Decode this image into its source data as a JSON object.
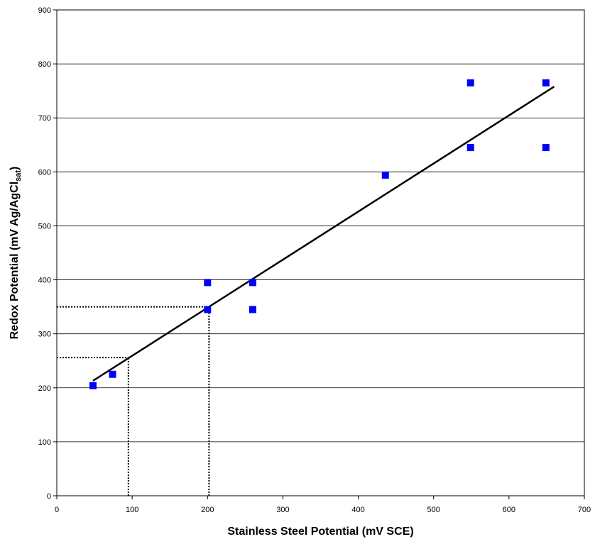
{
  "chart_data": {
    "type": "scatter",
    "title": "",
    "xlabel": "Stainless Steel Potential (mV SCE)",
    "ylabel": {
      "main": "Redox Potential (mV Ag/AgCl",
      "subscript": "sat",
      "close": ")"
    },
    "xlim": [
      0,
      700
    ],
    "ylim": [
      0,
      900
    ],
    "x_ticks": [
      0,
      100,
      200,
      300,
      400,
      500,
      600,
      700
    ],
    "y_ticks": [
      0,
      100,
      200,
      300,
      400,
      500,
      600,
      700,
      800,
      900
    ],
    "grid": "horizontal",
    "legend": "none",
    "series": [
      {
        "marker": "square",
        "color": "#0000ff",
        "points": [
          {
            "x": 48,
            "y": 204
          },
          {
            "x": 74,
            "y": 225
          },
          {
            "x": 200,
            "y": 345
          },
          {
            "x": 200,
            "y": 395
          },
          {
            "x": 260,
            "y": 345
          },
          {
            "x": 260,
            "y": 395
          },
          {
            "x": 436,
            "y": 594
          },
          {
            "x": 549,
            "y": 645
          },
          {
            "x": 549,
            "y": 765
          },
          {
            "x": 649,
            "y": 645
          },
          {
            "x": 649,
            "y": 765
          }
        ]
      }
    ],
    "trendline": {
      "type": "linear",
      "color": "#000000",
      "from": {
        "x": 48,
        "y": 213
      },
      "to": {
        "x": 660,
        "y": 758
      }
    },
    "reference_lines": [
      {
        "x": 95,
        "y": 256
      },
      {
        "x": 202,
        "y": 350
      }
    ]
  }
}
